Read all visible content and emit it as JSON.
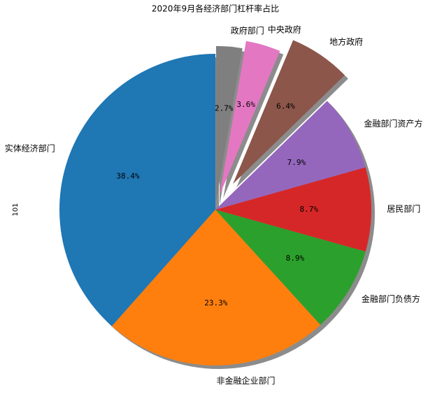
{
  "chart_data": {
    "type": "pie",
    "title": "2020年9月各经济部门杠杆率占比",
    "ylabel": "101",
    "categories": [
      "实体经济部门",
      "非金融企业部门",
      "金融部门负债方",
      "居民部门",
      "金融部门资产方",
      "地方政府",
      "中央政府",
      "政府部门"
    ],
    "values": [
      38.4,
      23.3,
      8.9,
      8.7,
      7.9,
      6.4,
      3.6,
      2.7
    ],
    "value_labels": [
      "38.4%",
      "23.3%",
      "8.9%",
      "8.7%",
      "7.9%",
      "6.4%",
      "3.6%",
      "2.7%"
    ],
    "colors": [
      "#1f77b4",
      "#ff7f0e",
      "#2ca02c",
      "#d62728",
      "#9467bd",
      "#8c564b",
      "#e377c2",
      "#7f7f7f"
    ],
    "explode": [
      0,
      0,
      0,
      0,
      0,
      0.2,
      0.1,
      0.05
    ],
    "startangle": 90,
    "counterclock": true,
    "shadow": true
  }
}
